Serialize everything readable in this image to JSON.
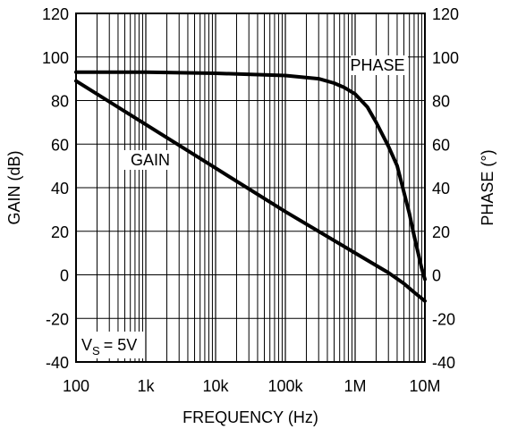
{
  "chart_data": {
    "type": "line",
    "xlabel": "FREQUENCY (Hz)",
    "ylabel_left": "GAIN (dB)",
    "ylabel_right": "PHASE (°)",
    "x_scale": "log",
    "xlim": [
      100,
      10000000
    ],
    "ylim_left": [
      -40,
      120
    ],
    "ylim_right": [
      -40,
      120
    ],
    "grid": true,
    "x_ticks": [
      {
        "value": 100,
        "label": "100"
      },
      {
        "value": 1000,
        "label": "1k"
      },
      {
        "value": 10000,
        "label": "10k"
      },
      {
        "value": 100000,
        "label": "100k"
      },
      {
        "value": 1000000,
        "label": "1M"
      },
      {
        "value": 10000000,
        "label": "10M"
      }
    ],
    "y_ticks": [
      -40,
      -20,
      0,
      20,
      40,
      60,
      80,
      100,
      120
    ],
    "y_tick_labels": [
      "-40",
      "-20",
      "0",
      "20",
      "40",
      "60",
      "80",
      "100",
      "120"
    ],
    "series": [
      {
        "name": "GAIN",
        "axis": "left",
        "x": [
          100,
          1000,
          10000,
          100000,
          1000000,
          3000000,
          5000000,
          7000000,
          10000000
        ],
        "y": [
          89,
          69,
          49,
          29,
          10,
          1,
          -4,
          -8,
          -12
        ]
      },
      {
        "name": "PHASE",
        "axis": "right",
        "x": [
          100,
          1000,
          10000,
          100000,
          300000,
          500000,
          700000,
          1000000,
          1500000,
          2000000,
          3000000,
          4000000,
          5000000,
          6000000,
          7000000,
          8000000,
          9000000,
          10000000
        ],
        "y": [
          93,
          93,
          92.5,
          91.5,
          90,
          88,
          86,
          83,
          77,
          70,
          59,
          50,
          38,
          28,
          18,
          10,
          3,
          -2
        ]
      }
    ],
    "annotation": {
      "text": "= 5V",
      "symbol": "V",
      "subscript": "S"
    }
  }
}
